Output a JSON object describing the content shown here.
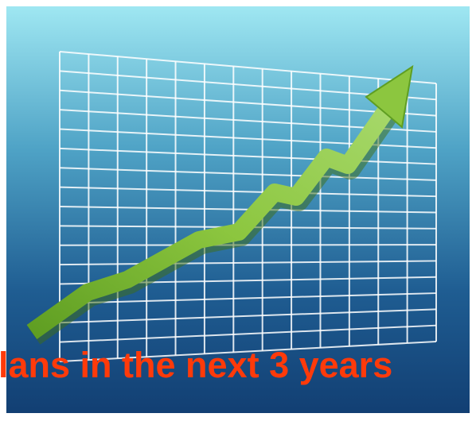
{
  "caption": "lans in the next 3 years"
}
